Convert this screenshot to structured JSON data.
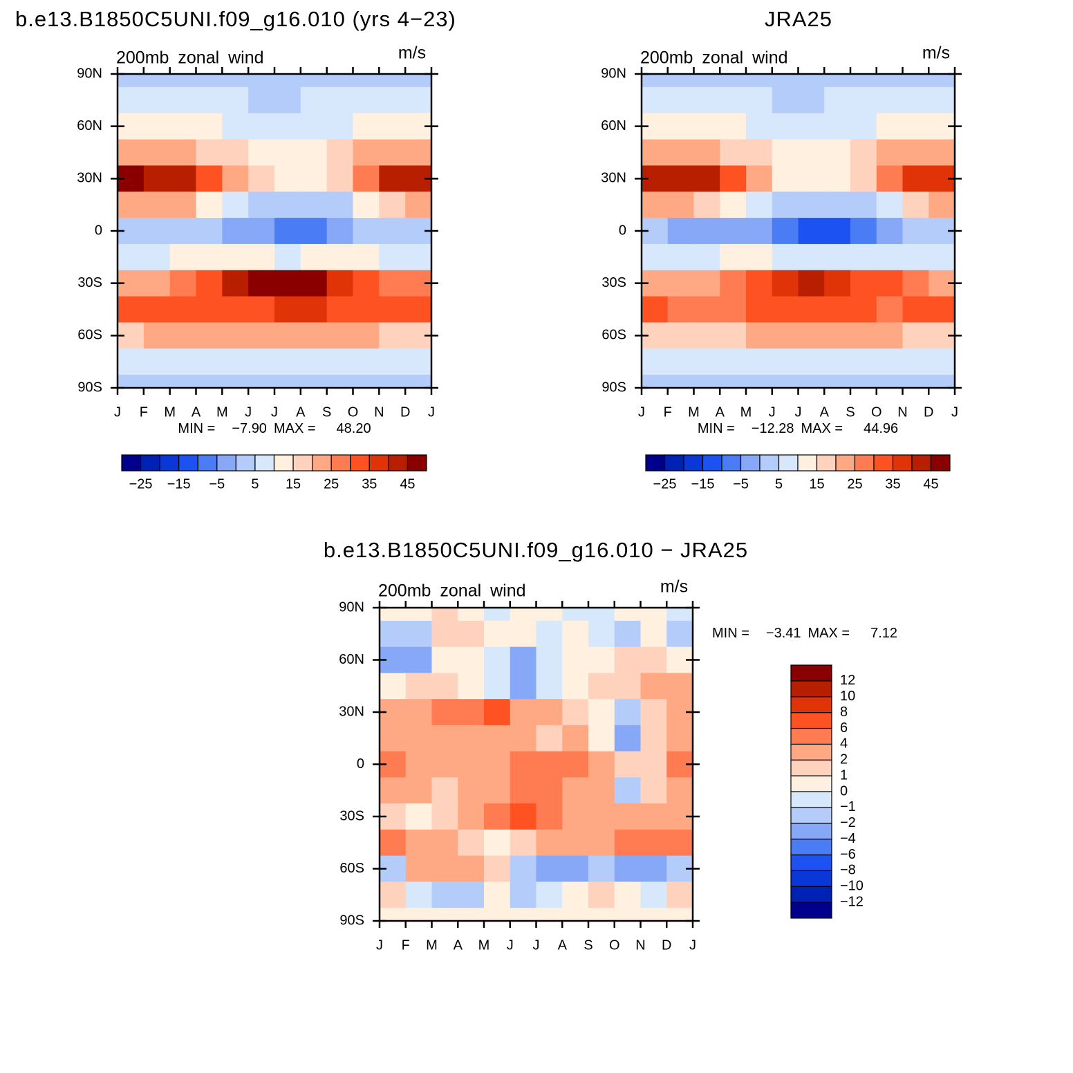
{
  "chart_data": [
    {
      "type": "contour",
      "title": "b.e13.B1850C5UNI.f09_g16.010 (yrs 4−23)",
      "subtitle": "200mb zonal wind",
      "units": "m/s",
      "stats": {
        "min_text": "MIN =",
        "min": {
          "value": -7.9,
          "label": "−7.90"
        },
        "max_text": "MAX =",
        "max": {
          "value": 48.2,
          "label": "48.20"
        }
      },
      "xticks": [
        "J",
        "F",
        "M",
        "A",
        "M",
        "J",
        "J",
        "A",
        "S",
        "O",
        "N",
        "D",
        "J"
      ],
      "ylim": [
        -90,
        90
      ],
      "yticks": [
        {
          "value": 90,
          "label": "90N"
        },
        {
          "value": 60,
          "label": "60N"
        },
        {
          "value": 30,
          "label": "30N"
        },
        0,
        {
          "value": -30,
          "label": "30S"
        },
        {
          "value": -60,
          "label": "60S"
        },
        {
          "value": -90,
          "label": "90S"
        }
      ],
      "levels": [
        {
          "value": -25,
          "label": "−25"
        },
        -20,
        {
          "value": -15,
          "label": "−15"
        },
        -10,
        {
          "value": -5,
          "label": "−5"
        },
        0,
        5,
        10,
        15,
        20,
        25,
        30,
        35,
        40,
        45
      ],
      "colors": [
        "#00008c",
        "#0022b4",
        "#0a38d8",
        "#1c52f2",
        "#4a7cf6",
        "#86a8f6",
        "#b4ccfa",
        "#d7e8fc",
        "#fff0e0",
        "#ffd2be",
        "#ffa884",
        "#ff7c52",
        "#ff5222",
        "#e03408",
        "#b81e00",
        "#8a0000"
      ],
      "field": {
        "lats": [
          90,
          75,
          60,
          45,
          30,
          15,
          0,
          -15,
          -30,
          -45,
          -60,
          -75,
          -90
        ],
        "rows": [
          [
            3,
            3,
            3,
            3,
            3,
            3,
            3,
            3,
            3,
            3,
            3,
            3
          ],
          [
            7,
            7,
            7,
            7,
            6,
            4,
            4,
            6,
            7,
            7,
            7,
            7
          ],
          [
            12,
            12,
            11,
            10,
            9,
            8,
            7,
            8,
            9,
            10,
            11,
            12
          ],
          [
            22,
            22,
            21,
            18,
            15,
            12,
            11,
            12,
            15,
            20,
            24,
            24
          ],
          [
            46,
            44,
            40,
            32,
            22,
            15,
            12,
            13,
            16,
            28,
            40,
            42
          ],
          [
            22,
            22,
            20,
            14,
            6,
            2,
            1,
            1,
            3,
            10,
            18,
            22
          ],
          [
            2,
            1,
            1,
            0,
            -2,
            -5,
            -7,
            -7,
            -4,
            0,
            2,
            2
          ],
          [
            8,
            9,
            10,
            12,
            12,
            10,
            9,
            10,
            10,
            10,
            9,
            8
          ],
          [
            22,
            22,
            26,
            32,
            40,
            45,
            47,
            45,
            38,
            32,
            28,
            26
          ],
          [
            32,
            32,
            34,
            30,
            30,
            34,
            35,
            35,
            34,
            33,
            34,
            34
          ],
          [
            18,
            20,
            20,
            20,
            22,
            24,
            24,
            23,
            21,
            20,
            18,
            17
          ],
          [
            7,
            7,
            8,
            8,
            9,
            9,
            9,
            9,
            8,
            8,
            7,
            7
          ],
          [
            3,
            3,
            3,
            3,
            3,
            3,
            3,
            3,
            3,
            3,
            3,
            3
          ]
        ]
      }
    },
    {
      "type": "contour",
      "title": "JRA25",
      "subtitle": "200mb zonal wind",
      "units": "m/s",
      "stats": {
        "min_text": "MIN =",
        "min": {
          "value": -12.28,
          "label": "−12.28"
        },
        "max_text": "MAX =",
        "max": {
          "value": 44.96,
          "label": "44.96"
        }
      },
      "xticks": [
        "J",
        "F",
        "M",
        "A",
        "M",
        "J",
        "J",
        "A",
        "S",
        "O",
        "N",
        "D",
        "J"
      ],
      "ylim": [
        -90,
        90
      ],
      "yticks": [
        {
          "value": 90,
          "label": "90N"
        },
        {
          "value": 60,
          "label": "60N"
        },
        {
          "value": 30,
          "label": "30N"
        },
        0,
        {
          "value": -30,
          "label": "30S"
        },
        {
          "value": -60,
          "label": "60S"
        },
        {
          "value": -90,
          "label": "90S"
        }
      ],
      "levels": [
        {
          "value": -25,
          "label": "−25"
        },
        -20,
        {
          "value": -15,
          "label": "−15"
        },
        -10,
        {
          "value": -5,
          "label": "−5"
        },
        0,
        5,
        10,
        15,
        20,
        25,
        30,
        35,
        40,
        45
      ],
      "colors": [
        "#00008c",
        "#0022b4",
        "#0a38d8",
        "#1c52f2",
        "#4a7cf6",
        "#86a8f6",
        "#b4ccfa",
        "#d7e8fc",
        "#fff0e0",
        "#ffd2be",
        "#ffa884",
        "#ff7c52",
        "#ff5222",
        "#e03408",
        "#b81e00",
        "#8a0000"
      ],
      "field": {
        "lats": [
          90,
          75,
          60,
          45,
          30,
          15,
          0,
          -15,
          -30,
          -45,
          -60,
          -75,
          -90
        ],
        "rows": [
          [
            3,
            3,
            3,
            3,
            3,
            3,
            3,
            3,
            3,
            3,
            3,
            3
          ],
          [
            7,
            7,
            7,
            7,
            6,
            4,
            4,
            6,
            7,
            7,
            7,
            7
          ],
          [
            12,
            12,
            11,
            10,
            9,
            8,
            7,
            8,
            9,
            10,
            11,
            12
          ],
          [
            22,
            22,
            21,
            18,
            15,
            12,
            11,
            12,
            15,
            20,
            23,
            23
          ],
          [
            42,
            42,
            40,
            32,
            22,
            14,
            12,
            12,
            16,
            28,
            36,
            38
          ],
          [
            21,
            21,
            19,
            13,
            5,
            1,
            0,
            0,
            2,
            9,
            17,
            21
          ],
          [
            0,
            -2,
            -2,
            -3,
            -5,
            -9,
            -12,
            -11,
            -7,
            -3,
            0,
            0
          ],
          [
            6,
            7,
            9,
            10,
            10,
            8,
            7,
            8,
            8,
            9,
            8,
            7
          ],
          [
            20,
            20,
            24,
            28,
            34,
            38,
            40,
            38,
            34,
            30,
            26,
            24
          ],
          [
            30,
            28,
            28,
            28,
            30,
            30,
            30,
            30,
            30,
            29,
            30,
            30
          ],
          [
            18,
            19,
            19,
            19,
            21,
            23,
            23,
            22,
            20,
            20,
            18,
            17
          ],
          [
            7,
            7,
            8,
            8,
            9,
            9,
            9,
            9,
            8,
            8,
            7,
            7
          ],
          [
            3,
            3,
            3,
            3,
            3,
            3,
            3,
            3,
            3,
            3,
            3,
            3
          ]
        ]
      }
    },
    {
      "type": "contour",
      "title": "b.e13.B1850C5UNI.f09_g16.010 − JRA25",
      "subtitle": "200mb zonal wind",
      "units": "m/s",
      "stats": {
        "min_text": "MIN =",
        "min": {
          "value": -3.41,
          "label": "−3.41"
        },
        "max_text": "MAX =",
        "max": {
          "value": 7.12,
          "label": "7.12"
        }
      },
      "xticks": [
        "J",
        "F",
        "M",
        "A",
        "M",
        "J",
        "J",
        "A",
        "S",
        "O",
        "N",
        "D",
        "J"
      ],
      "ylim": [
        -90,
        90
      ],
      "yticks": [
        {
          "value": 90,
          "label": "90N"
        },
        {
          "value": 60,
          "label": "60N"
        },
        {
          "value": 30,
          "label": "30N"
        },
        0,
        {
          "value": -30,
          "label": "30S"
        },
        {
          "value": -60,
          "label": "60S"
        },
        {
          "value": -90,
          "label": "90S"
        }
      ],
      "levels": [
        {
          "value": -12,
          "label": "−12"
        },
        {
          "value": -10,
          "label": "−10"
        },
        {
          "value": -8,
          "label": "−8"
        },
        {
          "value": -6,
          "label": "−6"
        },
        {
          "value": -4,
          "label": "−4"
        },
        {
          "value": -2,
          "label": "−2"
        },
        {
          "value": -1,
          "label": "−1"
        },
        0,
        1,
        2,
        4,
        6,
        8,
        10,
        12
      ],
      "colors": [
        "#00008c",
        "#0022b4",
        "#0a38d8",
        "#1c52f2",
        "#4a7cf6",
        "#86a8f6",
        "#b4ccfa",
        "#d7e8fc",
        "#fff0e0",
        "#ffd2be",
        "#ffa884",
        "#ff7c52",
        "#ff5222",
        "#e03408",
        "#b81e00",
        "#8a0000"
      ],
      "field": {
        "lats": [
          90,
          75,
          60,
          45,
          30,
          15,
          0,
          -15,
          -30,
          -45,
          -60,
          -75,
          -90
        ],
        "rows": [
          [
            0.5,
            0.5,
            1.5,
            0.5,
            -0.5,
            0.5,
            0.5,
            -0.5,
            -0.5,
            0.5,
            0.5,
            -0.5
          ],
          [
            -1.5,
            -1.5,
            1.5,
            1.5,
            0.5,
            0.5,
            -0.5,
            0.5,
            -0.5,
            -1.5,
            0.5,
            -1.5
          ],
          [
            -2.5,
            -2.5,
            0.5,
            0.5,
            -0.5,
            -2.5,
            -0.5,
            0.5,
            0.5,
            1.5,
            1.5,
            0.5
          ],
          [
            0.5,
            1.5,
            1.5,
            0.5,
            -0.5,
            -2.5,
            -0.5,
            0.5,
            1.5,
            1.5,
            2.5,
            2.5
          ],
          [
            3,
            3,
            4.5,
            5,
            6.5,
            3,
            2.5,
            1.5,
            0.5,
            -1.5,
            1.5,
            2.5
          ],
          [
            3,
            3,
            3,
            3,
            3,
            2.5,
            1.5,
            2.5,
            0.5,
            -2.5,
            1.5,
            3
          ],
          [
            4.5,
            3,
            3,
            3,
            3,
            5,
            5,
            4.5,
            2.5,
            1.5,
            1.5,
            4.5
          ],
          [
            2.5,
            2.5,
            1.5,
            2.5,
            3,
            4.5,
            4.5,
            3,
            2.5,
            -1.5,
            1.5,
            2.5
          ],
          [
            1.5,
            0.5,
            1.5,
            2.5,
            5,
            6.5,
            4.5,
            3,
            3,
            3,
            3,
            3
          ],
          [
            5,
            3,
            2.5,
            1.5,
            0.5,
            1.5,
            2.5,
            3,
            3,
            4.5,
            5,
            5
          ],
          [
            -1.5,
            2.5,
            2.5,
            3,
            1.5,
            -1.5,
            -2.5,
            -2.5,
            -1.5,
            -2.5,
            -2.5,
            -1.5
          ],
          [
            1.5,
            -0.5,
            -1.5,
            -1.5,
            0.5,
            -1.5,
            -0.5,
            0.5,
            1.5,
            0.5,
            -0.5,
            1.5
          ],
          [
            0.5,
            0.5,
            0.5,
            0.5,
            0.5,
            0.5,
            0.5,
            0.5,
            0.5,
            0.5,
            0.5,
            0.5
          ]
        ]
      }
    }
  ]
}
